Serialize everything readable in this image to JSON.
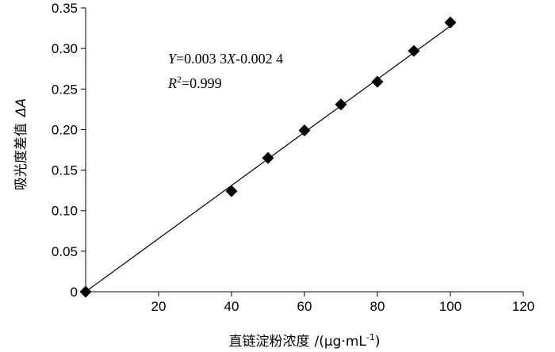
{
  "chart_data": {
    "type": "scatter",
    "title": "",
    "xlabel_main": "直链淀粉浓度",
    "xlabel_unit": "/(μg·mL",
    "xlabel_unit_sup": "-1",
    "xlabel_unit_end": ")",
    "ylabel_main": "吸光度差值",
    "ylabel_symbol": "ΔA",
    "xlim": [
      0,
      120
    ],
    "ylim": [
      0,
      0.35
    ],
    "x_ticks": [
      0,
      20,
      40,
      60,
      80,
      100,
      120
    ],
    "x_tick_labels": [
      "",
      "20",
      "40",
      "60",
      "80",
      "100",
      "120"
    ],
    "origin_label": "0",
    "y_ticks": [
      0,
      0.05,
      0.1,
      0.15,
      0.2,
      0.25,
      0.3,
      0.35
    ],
    "y_tick_labels": [
      "0",
      "0.05",
      "0.10",
      "0.15",
      "0.20",
      "0.25",
      "0.30",
      "0.35"
    ],
    "grid": false,
    "marker": "diamond",
    "marker_color": "#000000",
    "series": [
      {
        "x": [
          0,
          40,
          50,
          60,
          70,
          80,
          90,
          100
        ],
        "y": [
          0,
          0.124,
          0.165,
          0.199,
          0.231,
          0.259,
          0.297,
          0.332
        ]
      }
    ],
    "trendline": {
      "slope": 0.0033,
      "intercept": -0.0024,
      "x_range": [
        0,
        100
      ]
    },
    "annotations": {
      "equation_parts": [
        "Y",
        "=0.003 3",
        "X",
        "-0.002 4"
      ],
      "r2_parts": [
        "R",
        "2",
        "=0.999"
      ]
    }
  }
}
